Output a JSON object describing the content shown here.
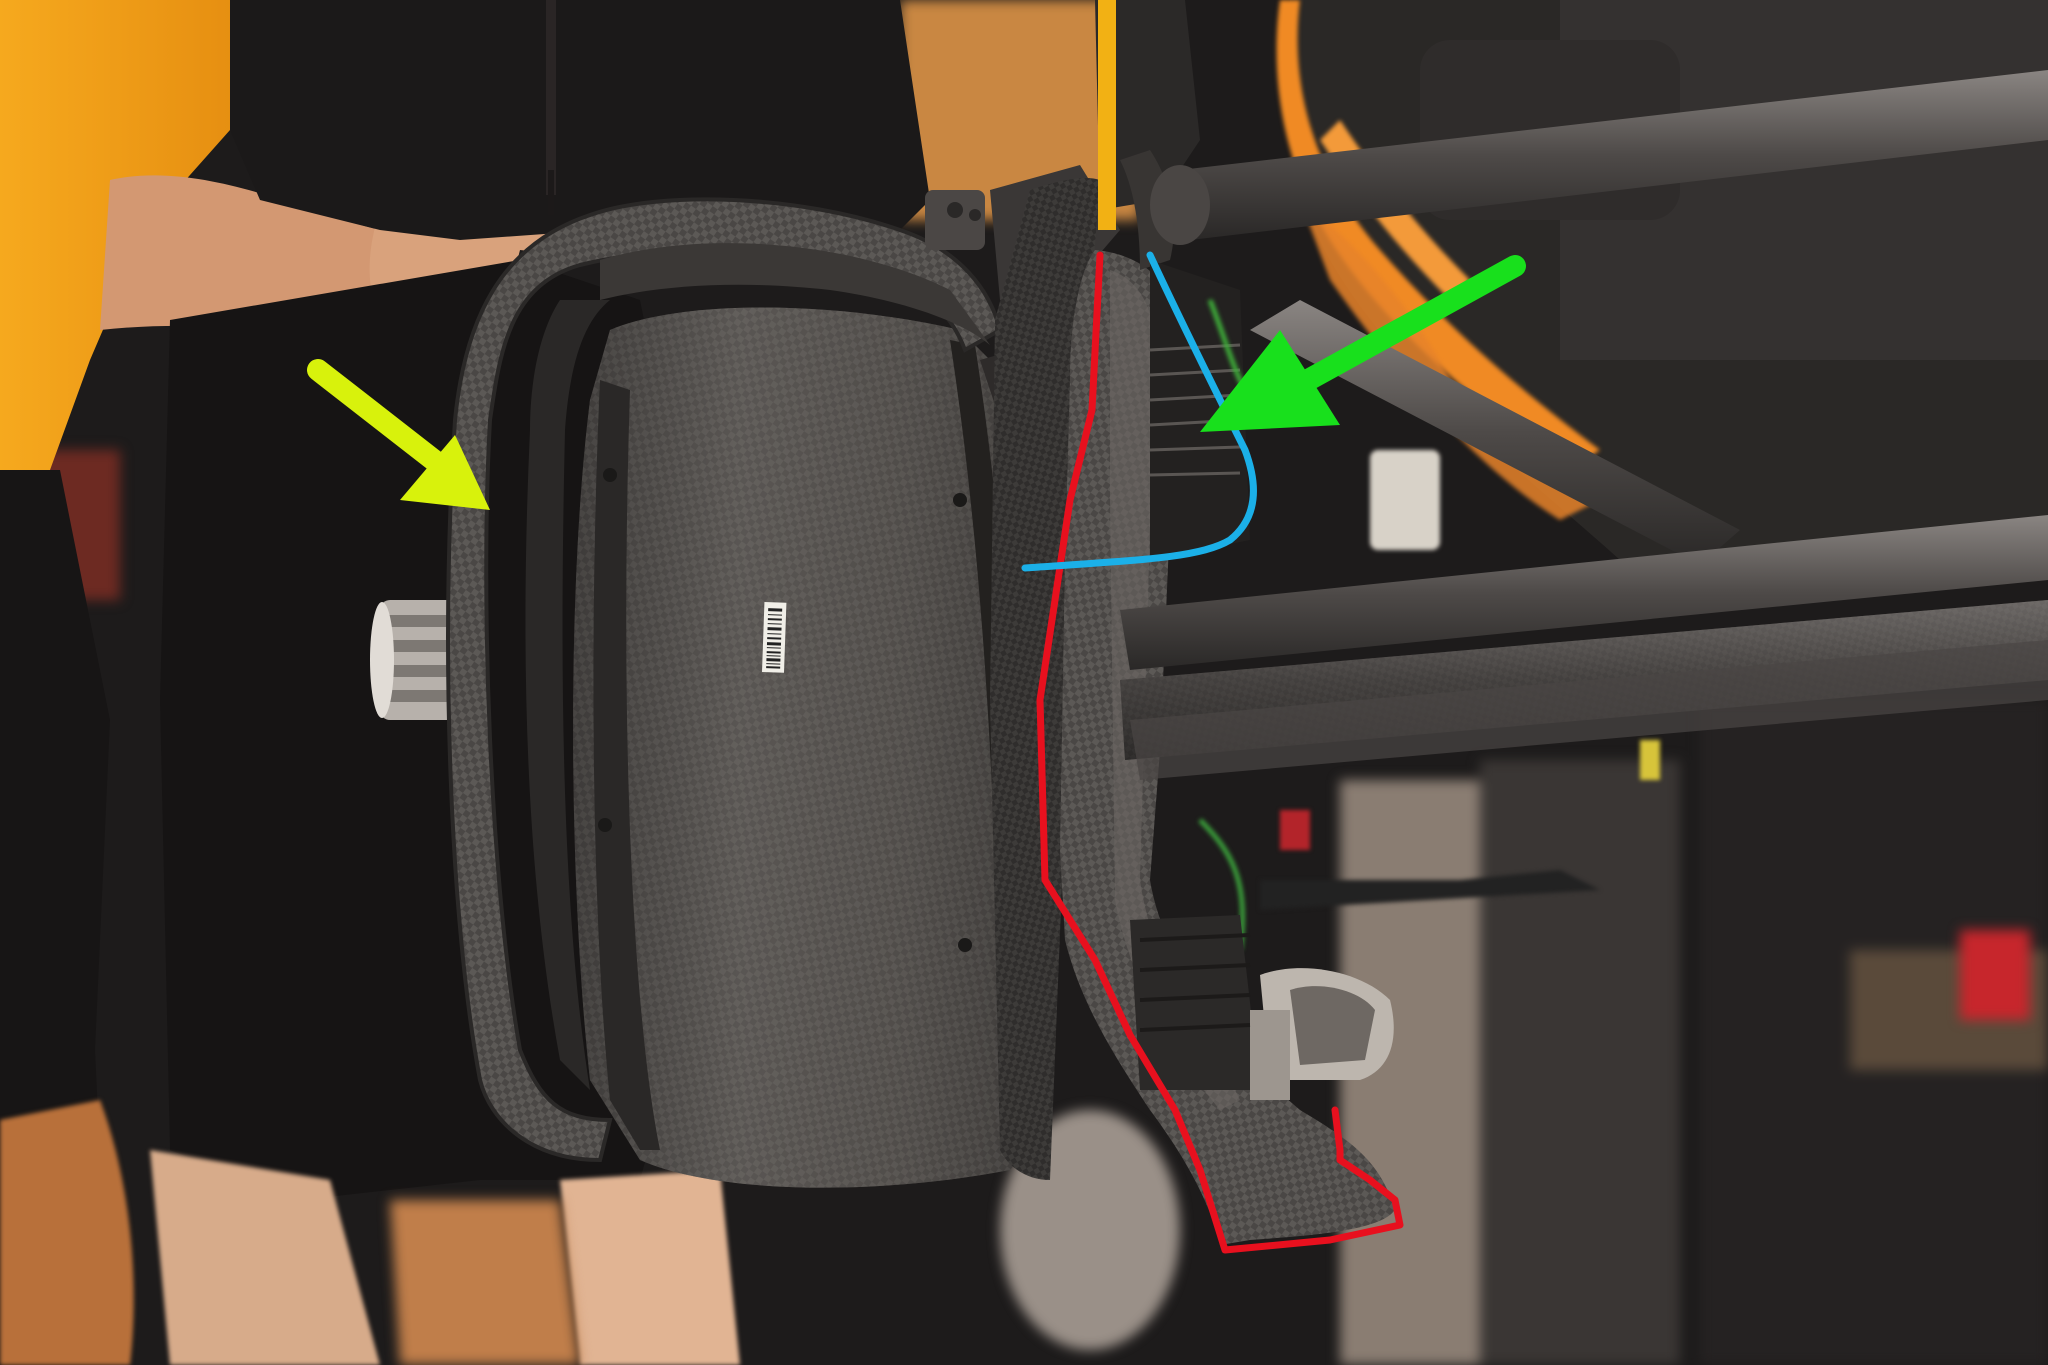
{
  "photo": {
    "subject": "brake-assembly",
    "palette": {
      "garage_dark": "#1a1818",
      "mechanic_shirt": "#f7a21a",
      "papaya_orange": "#f08a24",
      "carbon_dark": "#3c3a38",
      "carbon_mid": "#5a5754",
      "carbon_light": "#7d7a76",
      "suspension_arm": "#5b5755",
      "skin": "#d9a27c"
    },
    "annotations": {
      "red_outline": {
        "color": "#e8101e"
      },
      "blue_outline": {
        "color": "#1bb0e8"
      },
      "green_arrow": {
        "color": "#18e01c"
      },
      "yellow_arrow": {
        "color": "#d8f20c"
      }
    },
    "sticker_text": ""
  }
}
